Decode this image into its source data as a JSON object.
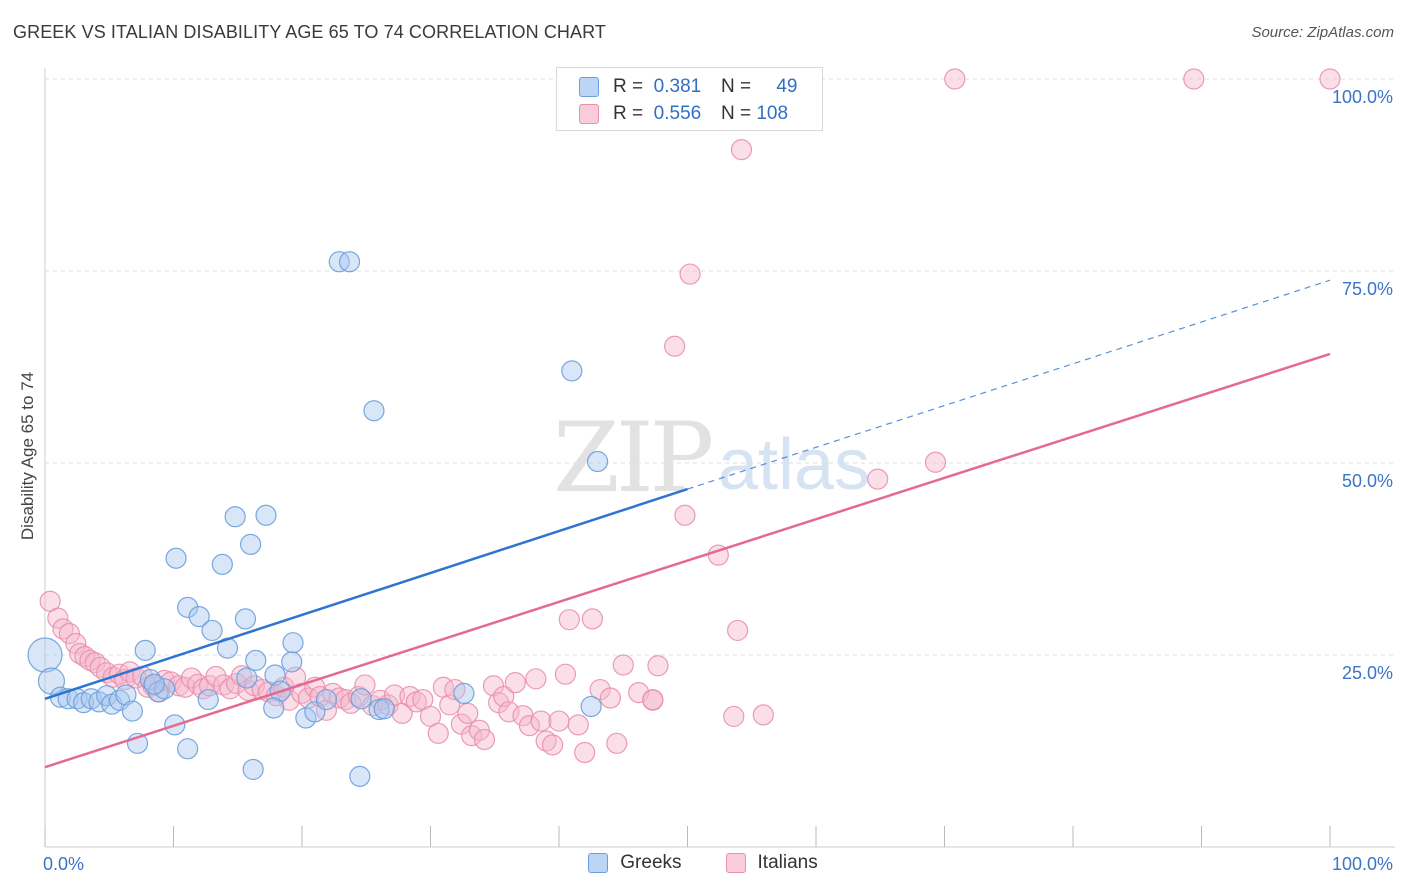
{
  "title": "GREEK VS ITALIAN DISABILITY AGE 65 TO 74 CORRELATION CHART",
  "source": "Source: ZipAtlas.com",
  "watermark": {
    "left": "ZIP",
    "right": "atlas"
  },
  "legend": {
    "rows": [
      {
        "r_label": "R =",
        "r_value": "0.381",
        "n_label": "N =",
        "n_value": "49"
      },
      {
        "r_label": "R =",
        "r_value": "0.556",
        "n_label": "N =",
        "n_value": "108"
      }
    ]
  },
  "bottom_legend": {
    "greeks": "Greeks",
    "italians": "Italians"
  },
  "colors": {
    "greeks_fill": "#a9c8f0",
    "greeks_stroke": "#6a9fdc",
    "greeks_line": "#2f74d0",
    "italians_fill": "#f5b8cc",
    "italians_stroke": "#ea8fae",
    "italians_line": "#e46a94",
    "axis_label": "#3b74c4",
    "grid": "#dddddd"
  },
  "chart_data": {
    "type": "scatter",
    "title": "GREEK VS ITALIAN DISABILITY AGE 65 TO 74 CORRELATION CHART",
    "xlabel": "",
    "ylabel": "Disability Age 65 to 74",
    "xlim": [
      0,
      100
    ],
    "ylim": [
      0,
      100
    ],
    "x_tick_labels": [
      "0.0%",
      "100.0%"
    ],
    "y_ticks": [
      25,
      50,
      75,
      100
    ],
    "y_tick_labels": [
      "25.0%",
      "50.0%",
      "75.0%",
      "100.0%"
    ],
    "grid": true,
    "legend_position": "top-center",
    "series": [
      {
        "name": "Greeks",
        "r": 0.381,
        "n": 49,
        "trend": {
          "x0": 0,
          "y0": 19.3,
          "x1": 50,
          "y1": 46.6,
          "x_dashed_end": 100,
          "y_dashed_end": 73.8
        },
        "points": [
          [
            0,
            25,
            3
          ],
          [
            0.5,
            21.6,
            2
          ],
          [
            1.2,
            19.5,
            1
          ],
          [
            1.8,
            19.3,
            1
          ],
          [
            2.5,
            19.3,
            1
          ],
          [
            3,
            18.8,
            1
          ],
          [
            3.6,
            19.3,
            1
          ],
          [
            4.2,
            18.9,
            1
          ],
          [
            4.8,
            19.7,
            1
          ],
          [
            5.2,
            18.6,
            1
          ],
          [
            5.8,
            19.1,
            1
          ],
          [
            6.3,
            19.8,
            1
          ],
          [
            6.8,
            17.7,
            1
          ],
          [
            7.2,
            13.5,
            1
          ],
          [
            7.8,
            25.6,
            1
          ],
          [
            8.2,
            21.8,
            1
          ],
          [
            8.8,
            20.2,
            1
          ],
          [
            9.3,
            20.6,
            1
          ],
          [
            8.5,
            21.2,
            1
          ],
          [
            10.2,
            37.6,
            1
          ],
          [
            10.1,
            15.9,
            1
          ],
          [
            11.1,
            12.8,
            1
          ],
          [
            11.1,
            31.2,
            1
          ],
          [
            12.0,
            30.0,
            1
          ],
          [
            12.7,
            19.2,
            1
          ],
          [
            13.0,
            28.2,
            1
          ],
          [
            13.8,
            36.8,
            1
          ],
          [
            14.2,
            25.9,
            1
          ],
          [
            14.8,
            43.0,
            1
          ],
          [
            15.6,
            29.7,
            1
          ],
          [
            16.0,
            39.4,
            1
          ],
          [
            15.7,
            22.0,
            1
          ],
          [
            16.4,
            24.3,
            1
          ],
          [
            17.9,
            22.4,
            1
          ],
          [
            18.3,
            20.3,
            1
          ],
          [
            19.3,
            26.6,
            1
          ],
          [
            16.2,
            10.1,
            1
          ],
          [
            17.2,
            43.2,
            1
          ],
          [
            17.8,
            18.1,
            1
          ],
          [
            19.2,
            24.1,
            1
          ],
          [
            20.3,
            16.8,
            1
          ],
          [
            21.0,
            17.6,
            1
          ],
          [
            21.9,
            19.2,
            1
          ],
          [
            22.9,
            76.2,
            1
          ],
          [
            23.7,
            76.2,
            1
          ],
          [
            24.6,
            19.3,
            1
          ],
          [
            24.5,
            9.2,
            1
          ],
          [
            25.6,
            56.8,
            1
          ],
          [
            26.0,
            17.9,
            1
          ],
          [
            26.4,
            18.0,
            1
          ],
          [
            32.6,
            20.0,
            1
          ],
          [
            41.0,
            62.0,
            1
          ],
          [
            42.5,
            18.3,
            1
          ],
          [
            43.0,
            50.2,
            1
          ]
        ]
      },
      {
        "name": "Italians",
        "r": 0.556,
        "n": 108,
        "trend": {
          "x0": 0,
          "y0": 10.4,
          "x1": 100,
          "y1": 64.2
        },
        "points": [
          [
            0.4,
            32,
            1
          ],
          [
            1.0,
            29.8,
            1
          ],
          [
            1.4,
            28.4,
            1
          ],
          [
            1.9,
            27.8,
            1
          ],
          [
            2.4,
            26.5,
            1
          ],
          [
            2.7,
            25.2,
            1
          ],
          [
            3.1,
            24.8,
            1
          ],
          [
            3.5,
            24.3,
            1
          ],
          [
            3.9,
            24.0,
            1
          ],
          [
            4.3,
            23.4,
            1
          ],
          [
            4.8,
            22.7,
            1
          ],
          [
            5.3,
            22.1,
            1
          ],
          [
            5.8,
            22.5,
            1
          ],
          [
            6.2,
            21.8,
            1
          ],
          [
            6.6,
            22.8,
            1
          ],
          [
            7.1,
            22.0,
            1
          ],
          [
            7.6,
            22.2,
            1
          ],
          [
            8.0,
            20.8,
            1
          ],
          [
            8.4,
            21.0,
            1
          ],
          [
            8.9,
            20.2,
            1
          ],
          [
            9.3,
            21.7,
            1
          ],
          [
            9.8,
            21.5,
            1
          ],
          [
            10.4,
            21.0,
            1
          ],
          [
            10.9,
            20.8,
            1
          ],
          [
            11.4,
            22.0,
            1
          ],
          [
            11.9,
            21.2,
            1
          ],
          [
            12.3,
            20.6,
            1
          ],
          [
            12.8,
            21.0,
            1
          ],
          [
            13.3,
            22.2,
            1
          ],
          [
            13.9,
            21.1,
            1
          ],
          [
            14.4,
            20.6,
            1
          ],
          [
            14.9,
            21.3,
            1
          ],
          [
            15.3,
            22.3,
            1
          ],
          [
            15.8,
            20.4,
            1
          ],
          [
            16.3,
            21.0,
            1
          ],
          [
            16.9,
            20.5,
            1
          ],
          [
            17.4,
            20.2,
            1
          ],
          [
            18.0,
            19.7,
            1
          ],
          [
            18.6,
            20.8,
            1
          ],
          [
            19.0,
            19.1,
            1
          ],
          [
            19.5,
            22.1,
            1
          ],
          [
            20.0,
            20.0,
            1
          ],
          [
            20.5,
            19.4,
            1
          ],
          [
            21.0,
            20.8,
            1
          ],
          [
            21.4,
            19.6,
            1
          ],
          [
            21.9,
            17.8,
            1
          ],
          [
            22.4,
            20.0,
            1
          ],
          [
            22.9,
            19.4,
            1
          ],
          [
            23.4,
            19.2,
            1
          ],
          [
            23.8,
            18.7,
            1
          ],
          [
            24.4,
            19.6,
            1
          ],
          [
            24.9,
            21.1,
            1
          ],
          [
            25.5,
            18.4,
            1
          ],
          [
            26.1,
            19.1,
            1
          ],
          [
            26.7,
            18.5,
            1
          ],
          [
            27.2,
            19.8,
            1
          ],
          [
            27.8,
            17.4,
            1
          ],
          [
            28.4,
            19.6,
            1
          ],
          [
            28.9,
            18.9,
            1
          ],
          [
            29.4,
            19.2,
            1
          ],
          [
            30.0,
            17.0,
            1
          ],
          [
            30.6,
            14.8,
            1
          ],
          [
            31.0,
            20.8,
            1
          ],
          [
            31.5,
            18.5,
            1
          ],
          [
            31.9,
            20.5,
            1
          ],
          [
            32.4,
            16.0,
            1
          ],
          [
            32.9,
            17.4,
            1
          ],
          [
            33.2,
            14.5,
            1
          ],
          [
            33.8,
            15.2,
            1
          ],
          [
            34.2,
            14.0,
            1
          ],
          [
            34.9,
            21.0,
            1
          ],
          [
            35.3,
            18.8,
            1
          ],
          [
            35.7,
            19.6,
            1
          ],
          [
            36.1,
            17.6,
            1
          ],
          [
            36.6,
            21.4,
            1
          ],
          [
            37.2,
            17.1,
            1
          ],
          [
            37.7,
            15.8,
            1
          ],
          [
            38.2,
            21.9,
            1
          ],
          [
            38.6,
            16.4,
            1
          ],
          [
            39.0,
            13.8,
            1
          ],
          [
            39.5,
            13.3,
            1
          ],
          [
            40.0,
            16.4,
            1
          ],
          [
            40.5,
            22.5,
            1
          ],
          [
            40.8,
            29.6,
            1
          ],
          [
            41.5,
            15.9,
            1
          ],
          [
            42.0,
            12.3,
            1
          ],
          [
            42.6,
            29.7,
            1
          ],
          [
            43.2,
            20.5,
            1
          ],
          [
            44.0,
            19.4,
            1
          ],
          [
            44.5,
            13.5,
            1
          ],
          [
            45.0,
            23.7,
            1
          ],
          [
            46.2,
            20.1,
            1
          ],
          [
            47.3,
            19.1,
            1
          ],
          [
            47.3,
            19.2,
            1
          ],
          [
            47.7,
            23.6,
            1
          ],
          [
            49.0,
            65.2,
            1
          ],
          [
            49.8,
            43.2,
            1
          ],
          [
            50.2,
            74.6,
            1
          ],
          [
            52.4,
            38.0,
            1
          ],
          [
            53.6,
            17.0,
            1
          ],
          [
            53.9,
            28.2,
            1
          ],
          [
            54.2,
            90.8,
            1
          ],
          [
            55.9,
            17.2,
            1
          ],
          [
            64.8,
            47.9,
            1
          ],
          [
            69.3,
            50.1,
            1
          ],
          [
            70.8,
            100,
            1
          ],
          [
            89.4,
            100,
            1
          ],
          [
            100,
            100,
            1
          ]
        ]
      }
    ]
  }
}
